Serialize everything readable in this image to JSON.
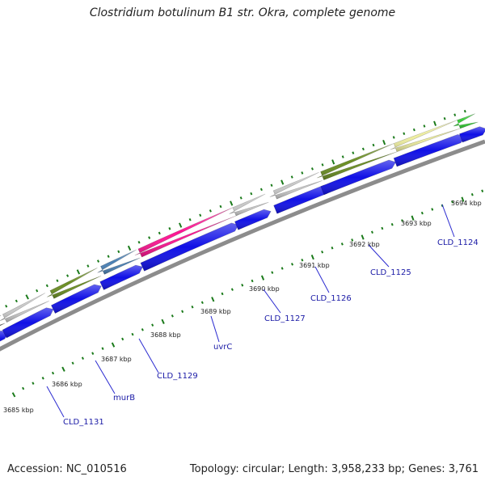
{
  "title": "Clostridium botulinum B1 str. Okra, complete genome",
  "footer": {
    "accession": "Accession: NC_010516",
    "summary": "Topology: circular; Length: 3,958,233 bp; Genes: 3,761"
  },
  "colors": {
    "backbone": "#8c8c8c",
    "forward_strand": "#1010e6",
    "tick": "#1a7a1a",
    "label": "#1a1aa6",
    "leader_line": "#2b2bd0"
  },
  "kbp_labels": [
    "3685 kbp",
    "3686 kbp",
    "3687 kbp",
    "3688 kbp",
    "3689 kbp",
    "3690 kbp",
    "3691 kbp",
    "3692 kbp",
    "3693 kbp",
    "3694 kbp"
  ],
  "gene_labels": [
    "CLD_1131",
    "murB",
    "CLD_1129",
    "uvrC",
    "CLD_1127",
    "CLD_1126",
    "CLD_1125",
    "CLD_1124"
  ],
  "reverse_strand_colors": [
    "#555555",
    "#c8c8c8",
    "#6b8e23",
    "#4a80b4",
    "#ff1493",
    "#c8c8c8",
    "#c8c8c8",
    "#6b8e23",
    "#eeeea0",
    "#33cc33"
  ]
}
